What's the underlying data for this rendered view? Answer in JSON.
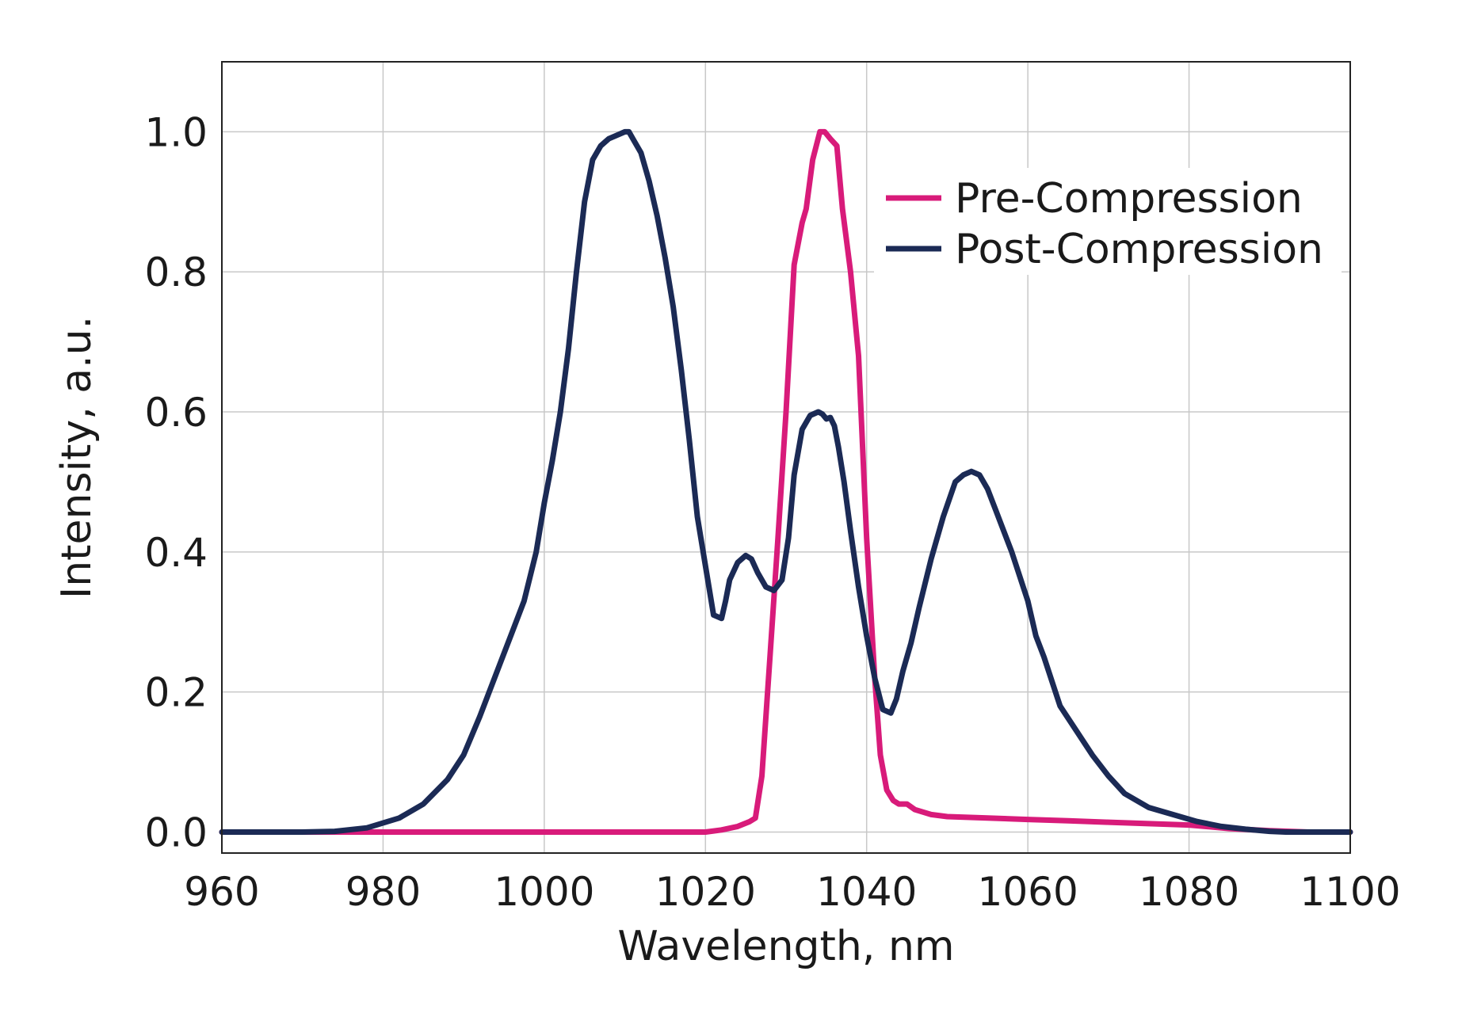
{
  "chart_data": {
    "type": "line",
    "title": "",
    "xlabel": "Wavelength, nm",
    "ylabel": "Intensity, a.u.",
    "xlim": [
      960,
      1100
    ],
    "ylim": [
      -0.03,
      1.1
    ],
    "xticks": [
      "960",
      "980",
      "1000",
      "1020",
      "1040",
      "1060",
      "1080",
      "1100"
    ],
    "yticks": [
      "0.0",
      "0.2",
      "0.4",
      "0.6",
      "0.8",
      "1.0"
    ],
    "grid": true,
    "legend_position": "top-right",
    "series": [
      {
        "name": "Pre-Compression",
        "color": "#d81b7a",
        "x": [
          960,
          1015,
          1020,
          1022,
          1024,
          1025.5,
          1026.2,
          1027,
          1028,
          1029,
          1030,
          1031,
          1032,
          1032.5,
          1033.3,
          1034.2,
          1034.8,
          1035.5,
          1036.3,
          1037,
          1038,
          1039,
          1040,
          1041,
          1041.7,
          1042.5,
          1043.3,
          1044,
          1045,
          1046,
          1048,
          1050,
          1055,
          1060,
          1065,
          1070,
          1075,
          1080,
          1085,
          1090,
          1095,
          1100
        ],
        "y": [
          0,
          0,
          0,
          0.003,
          0.008,
          0.015,
          0.02,
          0.08,
          0.25,
          0.42,
          0.6,
          0.81,
          0.87,
          0.89,
          0.96,
          1.0,
          1.0,
          0.99,
          0.98,
          0.89,
          0.8,
          0.68,
          0.42,
          0.22,
          0.11,
          0.06,
          0.045,
          0.04,
          0.04,
          0.032,
          0.025,
          0.022,
          0.02,
          0.018,
          0.016,
          0.014,
          0.012,
          0.01,
          0.005,
          0.002,
          0,
          0
        ]
      },
      {
        "name": "Post-Compression",
        "color": "#1b2a55",
        "x": [
          960,
          970,
          974,
          978,
          982,
          985,
          988,
          990,
          992,
          994,
          996,
          997.5,
          999,
          1000,
          1001,
          1002,
          1003,
          1004,
          1005,
          1006,
          1007,
          1008,
          1009,
          1010,
          1010.5,
          1011,
          1012,
          1013,
          1014,
          1015,
          1016,
          1017,
          1018,
          1019,
          1020,
          1021,
          1022,
          1022.5,
          1023,
          1024,
          1025,
          1025.7,
          1026.5,
          1027.5,
          1028.5,
          1029.5,
          1030.3,
          1031,
          1032,
          1033,
          1034,
          1034.5,
          1035,
          1035.5,
          1036,
          1036.5,
          1037.2,
          1038,
          1039,
          1040,
          1041,
          1042,
          1043,
          1043.7,
          1044.5,
          1045.5,
          1046.5,
          1048,
          1049.5,
          1051,
          1052,
          1053,
          1054,
          1055,
          1056,
          1058,
          1060,
          1061,
          1062,
          1064,
          1066,
          1068,
          1070,
          1072,
          1075,
          1078,
          1081,
          1084,
          1087,
          1090,
          1092,
          1095,
          1100
        ],
        "y": [
          0,
          0,
          0.001,
          0.006,
          0.02,
          0.04,
          0.075,
          0.11,
          0.165,
          0.225,
          0.285,
          0.33,
          0.4,
          0.47,
          0.53,
          0.6,
          0.69,
          0.8,
          0.9,
          0.96,
          0.98,
          0.99,
          0.995,
          1.0,
          1.0,
          0.99,
          0.97,
          0.93,
          0.88,
          0.82,
          0.75,
          0.66,
          0.56,
          0.45,
          0.38,
          0.31,
          0.305,
          0.33,
          0.36,
          0.385,
          0.395,
          0.39,
          0.37,
          0.35,
          0.345,
          0.36,
          0.42,
          0.51,
          0.575,
          0.595,
          0.6,
          0.597,
          0.59,
          0.592,
          0.58,
          0.55,
          0.5,
          0.43,
          0.35,
          0.28,
          0.22,
          0.175,
          0.17,
          0.19,
          0.23,
          0.27,
          0.32,
          0.39,
          0.45,
          0.5,
          0.51,
          0.515,
          0.51,
          0.49,
          0.46,
          0.4,
          0.33,
          0.28,
          0.25,
          0.18,
          0.145,
          0.11,
          0.08,
          0.055,
          0.035,
          0.025,
          0.015,
          0.008,
          0.004,
          0.001,
          0,
          0,
          0
        ]
      }
    ]
  }
}
